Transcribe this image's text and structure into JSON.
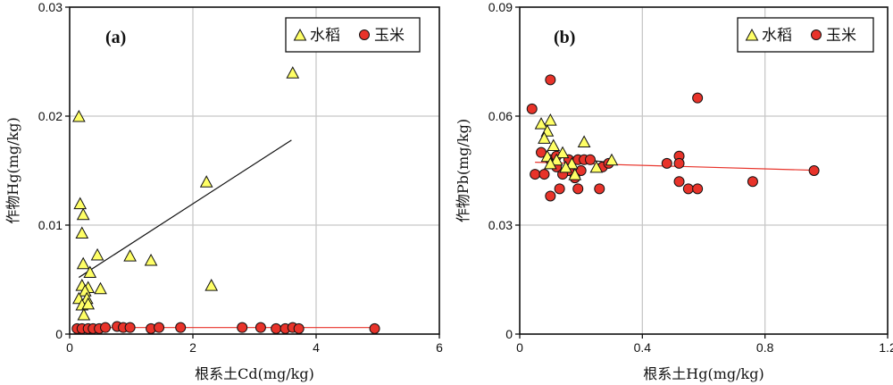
{
  "chart_data": [
    {
      "type": "scatter",
      "panel_label": "(a)",
      "xlabel": "根系土Cd(mg/kg)",
      "ylabel": "作物Hg(mg/kg)",
      "xlim": [
        0,
        6
      ],
      "ylim": [
        0,
        0.03
      ],
      "xticks": [
        "0",
        "2",
        "4",
        "6"
      ],
      "yticks": [
        "0",
        "0.01",
        "0.02",
        "0.03"
      ],
      "grid": true,
      "legend_position": "top-right",
      "series": [
        {
          "name": "水稻",
          "marker": "triangle",
          "color": "#ffff66",
          "points": [
            [
              0.15,
              0.02
            ],
            [
              0.17,
              0.012
            ],
            [
              0.22,
              0.011
            ],
            [
              0.2,
              0.0093
            ],
            [
              0.22,
              0.0065
            ],
            [
              0.45,
              0.0073
            ],
            [
              0.33,
              0.0057
            ],
            [
              0.3,
              0.0043
            ],
            [
              0.5,
              0.0042
            ],
            [
              0.2,
              0.0045
            ],
            [
              0.25,
              0.004
            ],
            [
              0.15,
              0.0033
            ],
            [
              0.28,
              0.0033
            ],
            [
              0.2,
              0.0027
            ],
            [
              0.3,
              0.0028
            ],
            [
              0.23,
              0.0018
            ],
            [
              0.98,
              0.0072
            ],
            [
              1.32,
              0.0068
            ],
            [
              2.22,
              0.014
            ],
            [
              2.3,
              0.0045
            ],
            [
              3.62,
              0.024
            ]
          ],
          "trendline": [
            [
              0.15,
              0.0052
            ],
            [
              3.6,
              0.0178
            ]
          ]
        },
        {
          "name": "玉米",
          "marker": "circle",
          "color": "#e8332a",
          "points": [
            [
              0.12,
              0.0005
            ],
            [
              0.2,
              0.0005
            ],
            [
              0.3,
              0.0005
            ],
            [
              0.38,
              0.0005
            ],
            [
              0.48,
              0.0005
            ],
            [
              0.58,
              0.0006
            ],
            [
              0.77,
              0.0007
            ],
            [
              0.87,
              0.0006
            ],
            [
              0.98,
              0.0006
            ],
            [
              1.32,
              0.0005
            ],
            [
              1.45,
              0.0006
            ],
            [
              1.8,
              0.0006
            ],
            [
              2.8,
              0.0006
            ],
            [
              3.1,
              0.0006
            ],
            [
              3.35,
              0.0005
            ],
            [
              3.5,
              0.0005
            ],
            [
              3.62,
              0.0006
            ],
            [
              3.72,
              0.0005
            ],
            [
              4.95,
              0.0005
            ]
          ],
          "trendline": [
            [
              0.1,
              0.0006
            ],
            [
              5.0,
              0.0006
            ]
          ]
        }
      ]
    },
    {
      "type": "scatter",
      "panel_label": "(b)",
      "xlabel": "根系土Hg(mg/kg)",
      "ylabel": "作物Pb(mg/kg)",
      "xlim": [
        0,
        1.2
      ],
      "ylim": [
        0,
        0.09
      ],
      "xticks": [
        "0",
        "0.4",
        "0.8",
        "1.2"
      ],
      "yticks": [
        "0",
        "0.03",
        "0.06",
        "0.09"
      ],
      "grid": true,
      "legend_position": "top-right",
      "series": [
        {
          "name": "水稻",
          "marker": "triangle",
          "color": "#ffff66",
          "points": [
            [
              0.1,
              0.059
            ],
            [
              0.07,
              0.058
            ],
            [
              0.09,
              0.056
            ],
            [
              0.08,
              0.054
            ],
            [
              0.11,
              0.052
            ],
            [
              0.21,
              0.053
            ],
            [
              0.14,
              0.05
            ],
            [
              0.09,
              0.049
            ],
            [
              0.12,
              0.048
            ],
            [
              0.1,
              0.047
            ],
            [
              0.17,
              0.047
            ],
            [
              0.18,
              0.044
            ],
            [
              0.15,
              0.046
            ],
            [
              0.25,
              0.046
            ],
            [
              0.3,
              0.048
            ]
          ],
          "trendline": [
            [
              0.08,
              0.0492
            ],
            [
              0.3,
              0.0472
            ]
          ]
        },
        {
          "name": "玉米",
          "marker": "circle",
          "color": "#e8332a",
          "points": [
            [
              0.04,
              0.062
            ],
            [
              0.1,
              0.07
            ],
            [
              0.58,
              0.065
            ],
            [
              0.07,
              0.05
            ],
            [
              0.1,
              0.048
            ],
            [
              0.12,
              0.049
            ],
            [
              0.16,
              0.048
            ],
            [
              0.19,
              0.048
            ],
            [
              0.21,
              0.048
            ],
            [
              0.23,
              0.048
            ],
            [
              0.12,
              0.046
            ],
            [
              0.16,
              0.045
            ],
            [
              0.2,
              0.045
            ],
            [
              0.14,
              0.044
            ],
            [
              0.05,
              0.044
            ],
            [
              0.08,
              0.044
            ],
            [
              0.18,
              0.043
            ],
            [
              0.27,
              0.046
            ],
            [
              0.29,
              0.047
            ],
            [
              0.13,
              0.04
            ],
            [
              0.19,
              0.04
            ],
            [
              0.26,
              0.04
            ],
            [
              0.1,
              0.038
            ],
            [
              0.48,
              0.047
            ],
            [
              0.52,
              0.049
            ],
            [
              0.52,
              0.047
            ],
            [
              0.52,
              0.042
            ],
            [
              0.55,
              0.04
            ],
            [
              0.58,
              0.04
            ],
            [
              0.76,
              0.042
            ],
            [
              0.96,
              0.045
            ]
          ],
          "trendline": [
            [
              0.05,
              0.0473
            ],
            [
              0.96,
              0.0451
            ]
          ]
        }
      ]
    }
  ]
}
